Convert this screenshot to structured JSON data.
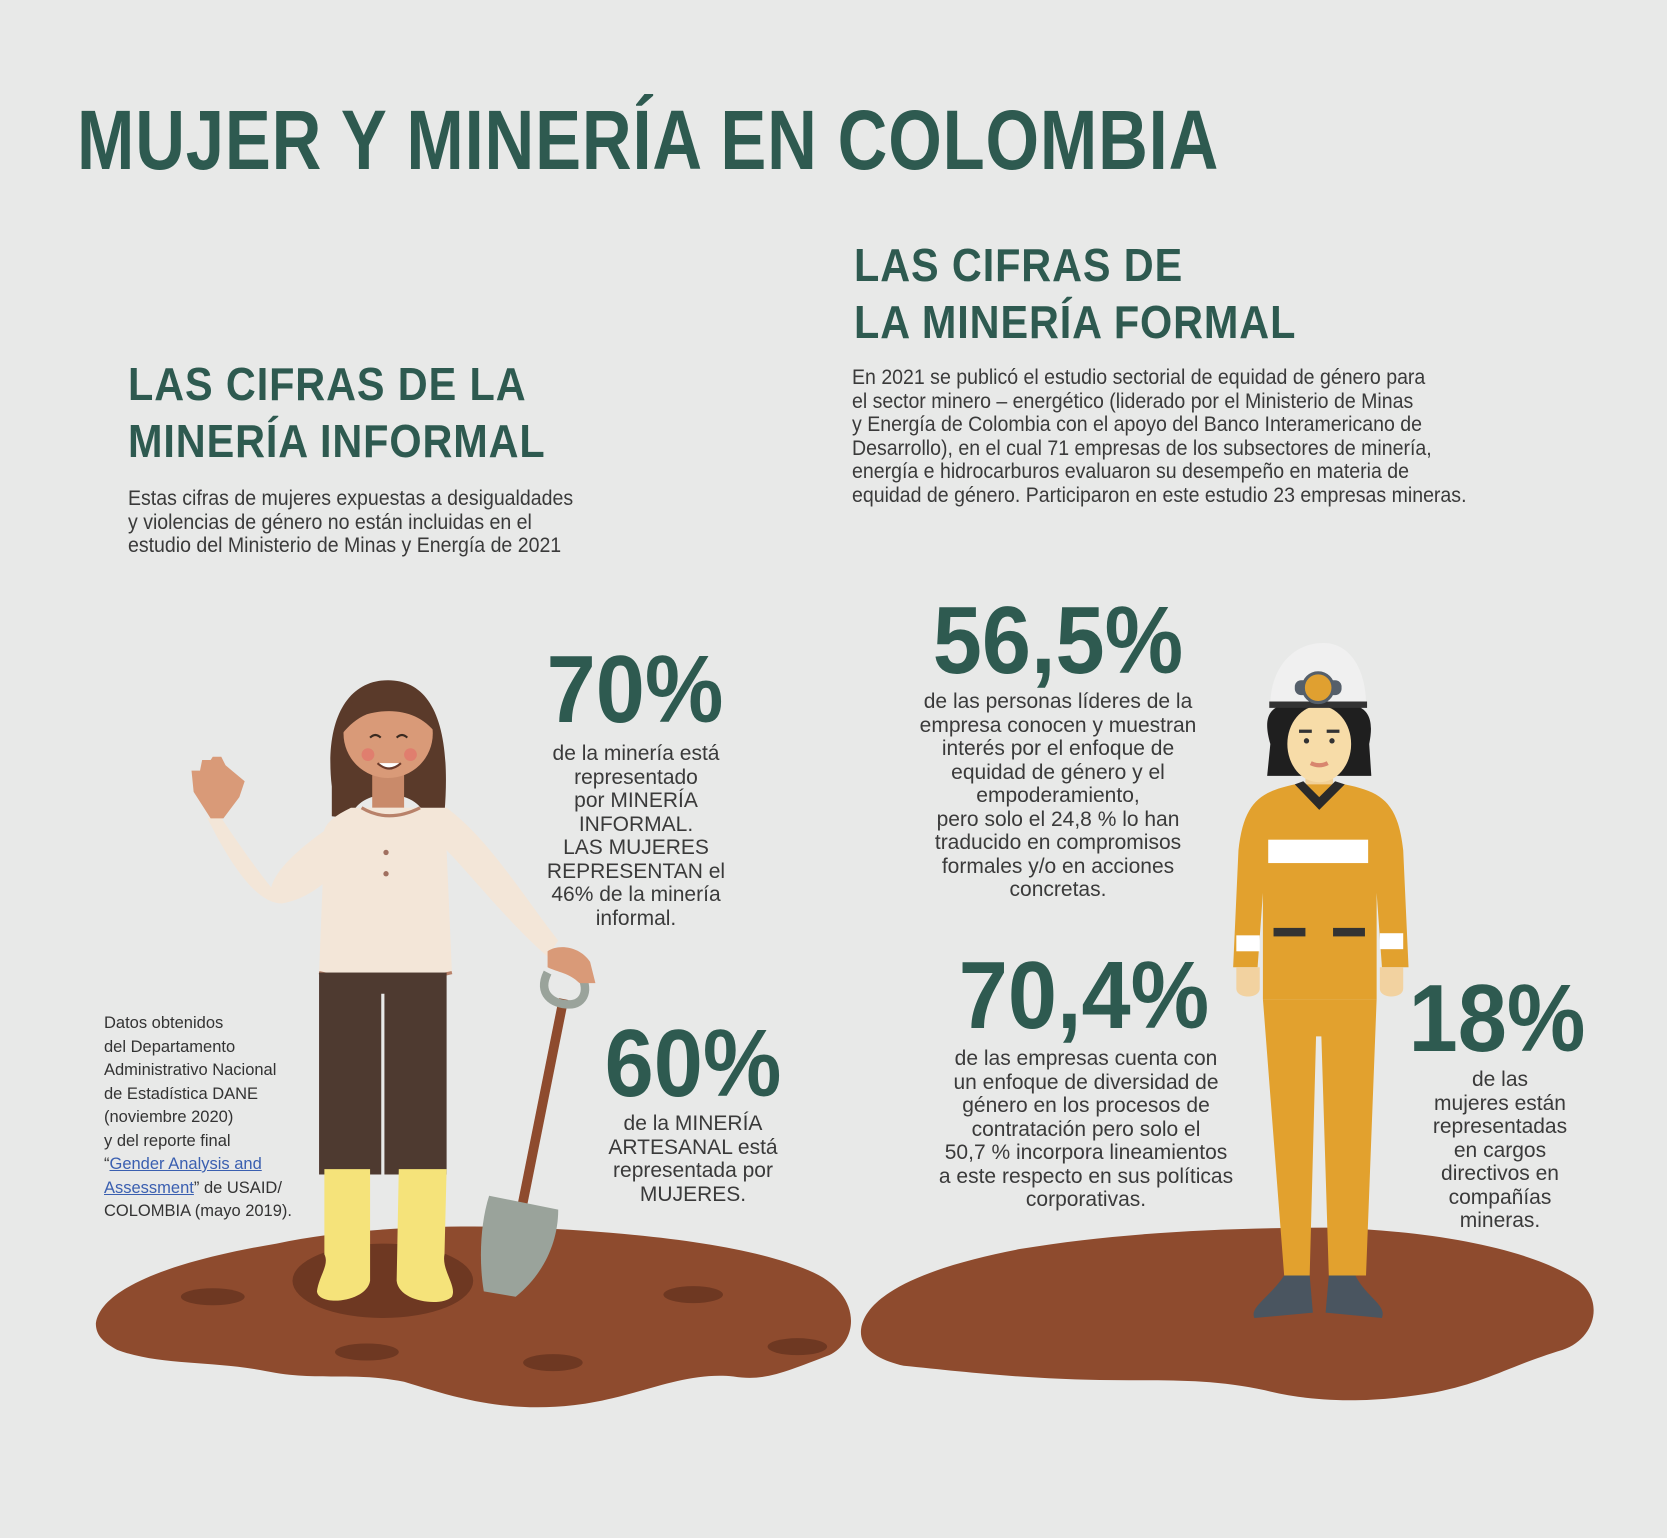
{
  "title": "MUJER Y MINERÍA EN COLOMBIA",
  "informal": {
    "heading": [
      "LAS CIFRAS DE LA",
      "MINERÍA INFORMAL"
    ],
    "intro": [
      "Estas cifras de mujeres expuestas a desigualdades",
      "y violencias de género no están incluidas en el",
      "estudio del Ministerio de Minas y Energía de 2021"
    ],
    "stat1": {
      "value": "70%",
      "text": [
        "de la minería está",
        "representado",
        "por MINERÍA",
        "INFORMAL.",
        "LAS MUJERES",
        "REPRESENTAN el",
        "46% de la minería",
        "informal."
      ]
    },
    "stat2": {
      "value": "60%",
      "text": [
        "de la MINERÍA",
        "ARTESANAL está",
        "representada por",
        "MUJERES."
      ]
    },
    "source": {
      "lines": [
        "Datos obtenidos",
        "del Departamento",
        "Administrativo Nacional",
        "de Estadística DANE",
        "(noviembre 2020)",
        "y del reporte final"
      ],
      "quote_open": "“",
      "link_line1": "Gender Analysis and",
      "link_line2": "Assessment",
      "after_link": "” de USAID/",
      "last_line": "COLOMBIA (mayo 2019)."
    }
  },
  "formal": {
    "heading": [
      "LAS CIFRAS DE",
      "LA MINERÍA FORMAL"
    ],
    "intro": [
      "En 2021 se publicó el estudio sectorial de equidad de género para",
      "el sector minero – energético (liderado por el Ministerio de Minas",
      "y Energía de Colombia con el apoyo del Banco Interamericano de",
      "Desarrollo), en el cual 71 empresas de los subsectores de minería,",
      "energía e hidrocarburos evaluaron su desempeño en materia de",
      "equidad de género. Participaron en este estudio 23 empresas mineras."
    ],
    "stat1": {
      "value": "56,5%",
      "text": [
        "de las personas líderes de la",
        "empresa conocen y muestran",
        "interés por el enfoque de",
        "equidad de género y el",
        "empoderamiento,",
        "pero solo el 24,8 % lo han",
        "traducido en compromisos",
        "formales y/o en acciones",
        "concretas."
      ]
    },
    "stat2": {
      "value": "70,4%",
      "text": [
        "de las empresas cuenta con",
        "un enfoque de diversidad de",
        "género en los procesos de",
        "contratación pero solo el",
        "50,7 % incorpora lineamientos",
        "a este respecto en sus políticas",
        "corporativas."
      ]
    },
    "stat3": {
      "value": "18%",
      "text": [
        "de las",
        "mujeres están",
        "representadas",
        "en cargos",
        "directivos en",
        "compañías",
        "mineras."
      ]
    }
  },
  "colors": {
    "heading": "#2e5a50",
    "background": "#e8e9e8",
    "mud": "#8e4b2e",
    "link": "#3a5fb0",
    "miner_suit": "#e2a12e"
  }
}
